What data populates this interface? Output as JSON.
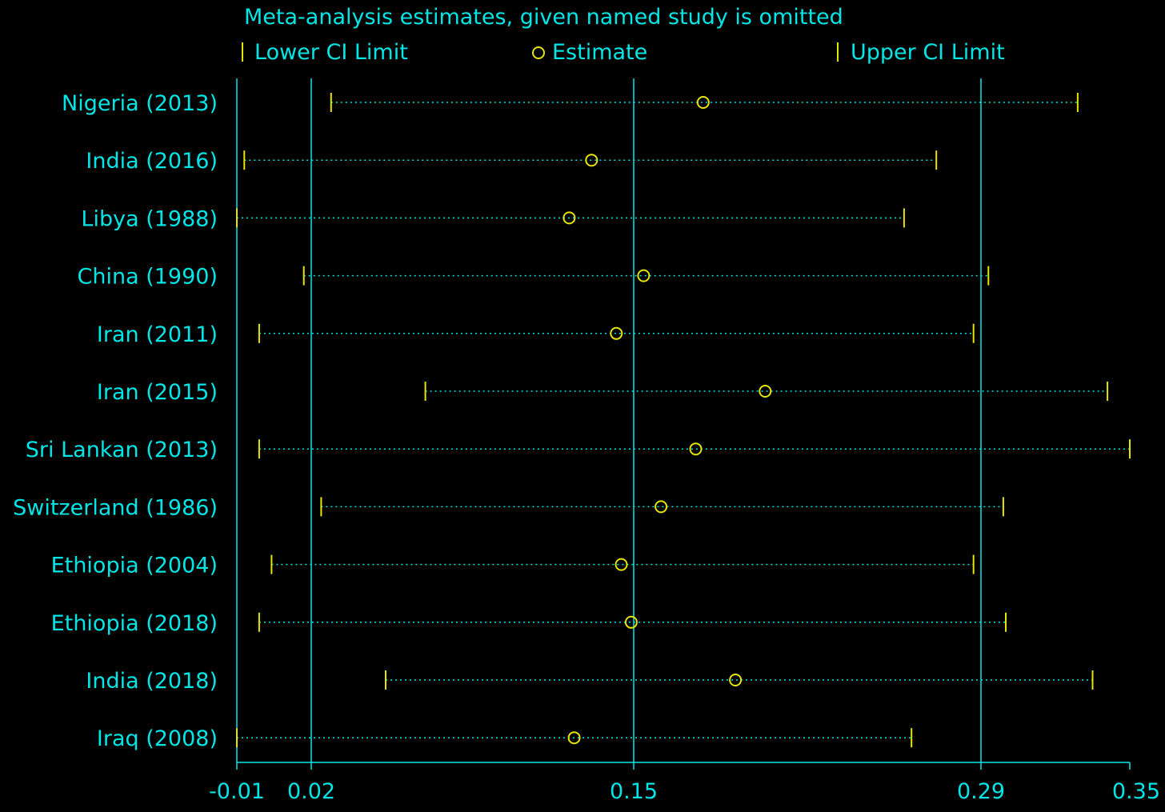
{
  "colors": {
    "background": "#000000",
    "text": "#00e5e5",
    "marker": "#e5e500",
    "axis": "#00e5e5",
    "dotted_line": "#00e5e5"
  },
  "chart_data": {
    "type": "forest",
    "title": "Meta-analysis estimates, given named study is omitted",
    "legend": {
      "placement": "top",
      "items": [
        {
          "label": "Lower CI Limit",
          "symbol": "tick"
        },
        {
          "label": "Estimate",
          "symbol": "circle"
        },
        {
          "label": "Upper CI Limit",
          "symbol": "tick"
        }
      ]
    },
    "x_range": [
      -0.01,
      0.35
    ],
    "x_ticks": [
      {
        "value": -0.01,
        "label": "-0.01"
      },
      {
        "value": 0.02,
        "label": "0.02"
      },
      {
        "value": 0.15,
        "label": "0.15"
      },
      {
        "value": 0.29,
        "label": "0.29"
      },
      {
        "value": 0.35,
        "label": "0.35"
      }
    ],
    "reference_lines": [
      -0.01,
      0.02,
      0.15,
      0.29
    ],
    "studies": [
      {
        "label": "Nigeria (2013)",
        "lower": 0.028,
        "estimate": 0.178,
        "upper": 0.329
      },
      {
        "label": "India (2016)",
        "lower": -0.007,
        "estimate": 0.133,
        "upper": 0.272
      },
      {
        "label": "Libya (1988)",
        "lower": -0.01,
        "estimate": 0.124,
        "upper": 0.259
      },
      {
        "label": "China (1990)",
        "lower": 0.017,
        "estimate": 0.154,
        "upper": 0.293
      },
      {
        "label": "Iran (2011)",
        "lower": -0.001,
        "estimate": 0.143,
        "upper": 0.287
      },
      {
        "label": "Iran (2015)",
        "lower": 0.066,
        "estimate": 0.203,
        "upper": 0.341
      },
      {
        "label": "Sri Lankan (2013)",
        "lower": -0.001,
        "estimate": 0.175,
        "upper": 0.35
      },
      {
        "label": "Switzerland (1986)",
        "lower": 0.024,
        "estimate": 0.161,
        "upper": 0.299
      },
      {
        "label": "Ethiopia (2004)",
        "lower": 0.004,
        "estimate": 0.145,
        "upper": 0.287
      },
      {
        "label": "Ethiopia (2018)",
        "lower": -0.001,
        "estimate": 0.149,
        "upper": 0.3
      },
      {
        "label": "India (2018)",
        "lower": 0.05,
        "estimate": 0.191,
        "upper": 0.335
      },
      {
        "label": "Iraq (2008)",
        "lower": -0.01,
        "estimate": 0.126,
        "upper": 0.262
      }
    ]
  }
}
